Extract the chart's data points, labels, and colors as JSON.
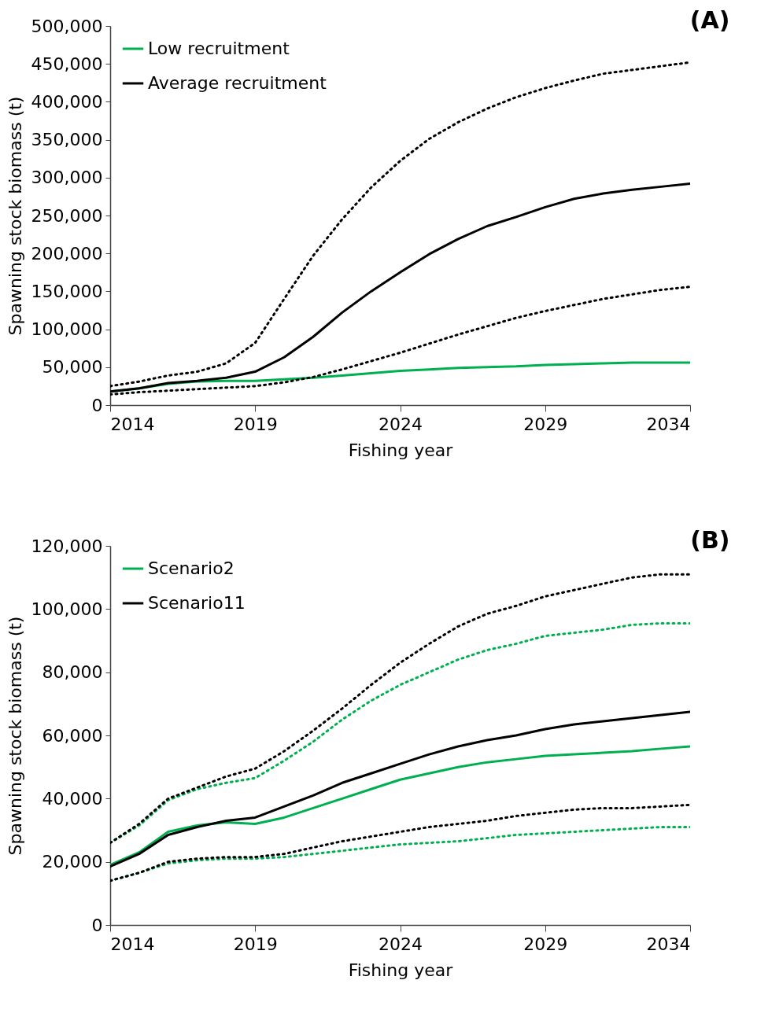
{
  "chart_data": [
    {
      "type": "line",
      "title": "(A)",
      "xlabel": "Fishing year",
      "ylabel": "Spawning stock biomass (t)",
      "x": [
        2014,
        2015,
        2016,
        2017,
        2018,
        2019,
        2020,
        2021,
        2022,
        2023,
        2024,
        2025,
        2026,
        2027,
        2028,
        2029,
        2030,
        2031,
        2032,
        2033,
        2034
      ],
      "xlim": [
        2014,
        2034
      ],
      "xticks": [
        2014,
        2019,
        2024,
        2029,
        2034
      ],
      "ylim": [
        0,
        500000
      ],
      "yticks": [
        {
          "value": 0,
          "label": "0"
        },
        {
          "value": 50000,
          "label": "50,000"
        },
        {
          "value": 100000,
          "label": "100,000"
        },
        {
          "value": 150000,
          "label": "150,000"
        },
        {
          "value": 200000,
          "label": "200,000"
        },
        {
          "value": 250000,
          "label": "250,000"
        },
        {
          "value": 300000,
          "label": "300,000"
        },
        {
          "value": 350000,
          "label": "350,000"
        },
        {
          "value": 400000,
          "label": "400,000"
        },
        {
          "value": 450000,
          "label": "450,000"
        },
        {
          "value": 500000,
          "label": "500,000"
        }
      ],
      "legend": "top left",
      "series": [
        {
          "name": "Low recruitment",
          "color": "#00b050",
          "line_style": "solid",
          "values": [
            18000,
            22000,
            28000,
            31000,
            32000,
            32000,
            34000,
            36000,
            39000,
            42000,
            45000,
            47000,
            49000,
            50000,
            51000,
            53000,
            54000,
            55000,
            56000,
            56000,
            56000
          ]
        },
        {
          "name": "Average recruitment",
          "color": "#000000",
          "line_style": "solid",
          "values": [
            18000,
            22000,
            29000,
            32000,
            36000,
            44000,
            63000,
            90000,
            122000,
            150000,
            175000,
            199000,
            219000,
            236000,
            248000,
            261000,
            272000,
            279000,
            284000,
            288000,
            292000
          ]
        },
        {
          "color": "#000000",
          "line_style": "dotted",
          "values": [
            25000,
            31000,
            39000,
            44000,
            55000,
            82000,
            140000,
            197000,
            245000,
            287000,
            322000,
            351000,
            373000,
            391000,
            406000,
            418000,
            428000,
            437000,
            442000,
            447000,
            452000
          ]
        },
        {
          "color": "#000000",
          "line_style": "dotted",
          "values": [
            14000,
            17000,
            19000,
            21000,
            23000,
            25000,
            30000,
            37000,
            47000,
            58000,
            69000,
            81000,
            93000,
            104000,
            115000,
            124000,
            132000,
            140000,
            146000,
            152000,
            156000
          ]
        }
      ]
    },
    {
      "type": "line",
      "title": "(B)",
      "xlabel": "Fishing year",
      "ylabel": "Spawning stock biomass (t)",
      "x": [
        2014,
        2015,
        2016,
        2017,
        2018,
        2019,
        2020,
        2021,
        2022,
        2023,
        2024,
        2025,
        2026,
        2027,
        2028,
        2029,
        2030,
        2031,
        2032,
        2033,
        2034
      ],
      "xlim": [
        2014,
        2034
      ],
      "xticks": [
        2014,
        2019,
        2024,
        2029,
        2034
      ],
      "ylim": [
        0,
        120000
      ],
      "yticks": [
        {
          "value": 0,
          "label": "0"
        },
        {
          "value": 20000,
          "label": "20,000"
        },
        {
          "value": 40000,
          "label": "40,000"
        },
        {
          "value": 60000,
          "label": "60,000"
        },
        {
          "value": 80000,
          "label": "80,000"
        },
        {
          "value": 100000,
          "label": "100,000"
        },
        {
          "value": 120000,
          "label": "120,000"
        }
      ],
      "legend": "top left",
      "series": [
        {
          "name": "Scenario2",
          "color": "#00b050",
          "line_style": "solid",
          "values": [
            19000,
            23000,
            29500,
            31500,
            32500,
            32000,
            34000,
            37000,
            40000,
            43000,
            46000,
            48000,
            50000,
            51500,
            52500,
            53500,
            54000,
            54500,
            55000,
            55800,
            56500
          ]
        },
        {
          "name": "Scenario11",
          "color": "#000000",
          "line_style": "solid",
          "values": [
            18500,
            22500,
            28500,
            31000,
            33000,
            34000,
            37500,
            41000,
            45000,
            48000,
            51000,
            54000,
            56500,
            58500,
            60000,
            62000,
            63500,
            64500,
            65500,
            66500,
            67500
          ]
        },
        {
          "color": "#00b050",
          "line_style": "dotted",
          "values": [
            26000,
            31500,
            39500,
            43000,
            45000,
            46500,
            52000,
            58000,
            65000,
            71000,
            76000,
            80000,
            84000,
            87000,
            89000,
            91500,
            92500,
            93500,
            95000,
            95500,
            95500
          ]
        },
        {
          "color": "#000000",
          "line_style": "dotted",
          "values": [
            26000,
            32000,
            40000,
            43500,
            47000,
            49500,
            55000,
            61500,
            68500,
            76000,
            83000,
            89000,
            94500,
            98500,
            101000,
            104000,
            106000,
            108000,
            110000,
            111000,
            111000
          ]
        },
        {
          "color": "#00b050",
          "line_style": "dotted",
          "values": [
            14000,
            16500,
            19500,
            20500,
            21000,
            21000,
            21500,
            22500,
            23500,
            24500,
            25500,
            26000,
            26500,
            27500,
            28500,
            29000,
            29500,
            30000,
            30500,
            31000,
            31000
          ]
        },
        {
          "color": "#000000",
          "line_style": "dotted",
          "values": [
            14000,
            16500,
            20000,
            21000,
            21500,
            21500,
            22500,
            24500,
            26500,
            28000,
            29500,
            31000,
            32000,
            33000,
            34500,
            35500,
            36500,
            37000,
            37000,
            37500,
            38000
          ]
        }
      ]
    }
  ]
}
